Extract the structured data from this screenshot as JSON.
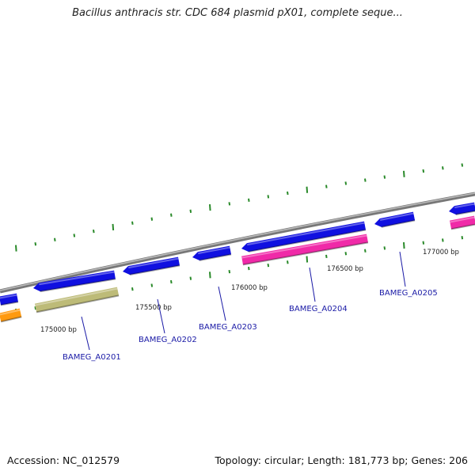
{
  "title": "Bacillus anthracis str. CDC 684 plasmid pX01, complete seque...",
  "footer": {
    "accession": "Accession: NC_012579",
    "summary": "Topology: circular; Length: 181,773 bp; Genes: 206"
  },
  "ticks": {
    "labels": [
      "175000 bp",
      "175500 bp",
      "176000 bp",
      "176500 bp",
      "177000 bp"
    ]
  },
  "genes": {
    "labels": [
      "BAMEG_A0201",
      "BAMEG_A0202",
      "BAMEG_A0203",
      "BAMEG_A0204",
      "BAMEG_A0205"
    ]
  },
  "colors": {
    "cds": "#1010e0",
    "magenta": "#f02aa8",
    "khaki": "#bdbb78",
    "orange": "#ff9a10",
    "backbone": "#8a8a8a",
    "ticks": "#2a8a2a",
    "label": "#1a1aa6"
  }
}
